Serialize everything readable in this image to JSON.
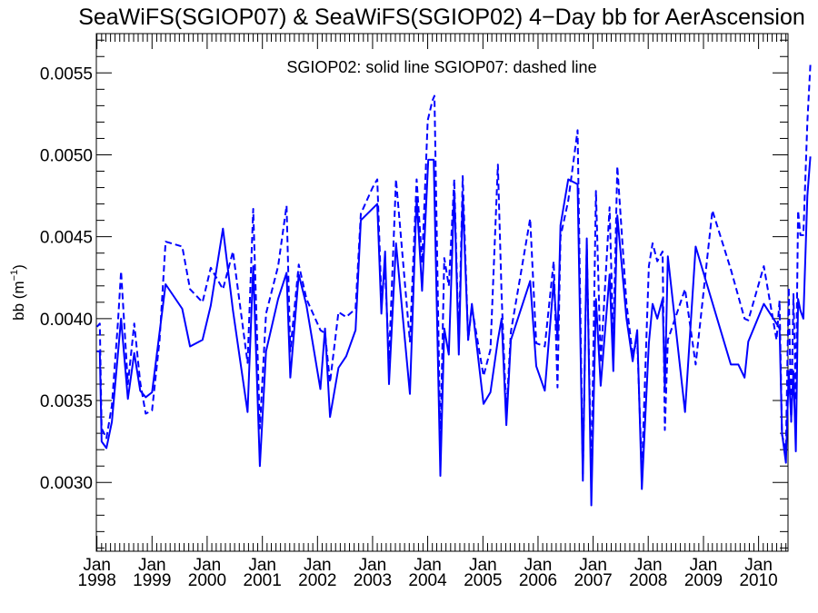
{
  "chart_data": {
    "type": "line",
    "title": "SeaWiFS(SGIOP07) & SeaWiFS(SGIOP02) 4−Day bb for AerAscension",
    "annotation": "SGIOP02: solid line   SGIOP07: dashed line",
    "ylabel": "bb (m",
    "ylabel_sup": "−1",
    "ylabel_close": ")",
    "xlim": [
      "1997-12-28",
      "2010-07-15"
    ],
    "ylim": [
      0.00258,
      0.00574
    ],
    "grid": false,
    "color": "#0000ff",
    "y_ticks": [
      {
        "value": 0.003,
        "label": "0.0030"
      },
      {
        "value": 0.0035,
        "label": "0.0035"
      },
      {
        "value": 0.004,
        "label": "0.0040"
      },
      {
        "value": 0.0045,
        "label": "0.0045"
      },
      {
        "value": 0.005,
        "label": "0.0050"
      },
      {
        "value": 0.0055,
        "label": "0.0055"
      }
    ],
    "x_ticks": [
      {
        "date": "1998-01-01",
        "month": "Jan",
        "year": "1998"
      },
      {
        "date": "1999-01-01",
        "month": "Jan",
        "year": "1999"
      },
      {
        "date": "2000-01-01",
        "month": "Jan",
        "year": "2000"
      },
      {
        "date": "2001-01-01",
        "month": "Jan",
        "year": "2001"
      },
      {
        "date": "2002-01-01",
        "month": "Jan",
        "year": "2002"
      },
      {
        "date": "2003-01-01",
        "month": "Jan",
        "year": "2003"
      },
      {
        "date": "2004-01-01",
        "month": "Jan",
        "year": "2004"
      },
      {
        "date": "2005-01-01",
        "month": "Jan",
        "year": "2005"
      },
      {
        "date": "2006-01-01",
        "month": "Jan",
        "year": "2006"
      },
      {
        "date": "2007-01-01",
        "month": "Jan",
        "year": "2007"
      },
      {
        "date": "2008-01-01",
        "month": "Jan",
        "year": "2008"
      },
      {
        "date": "2009-01-01",
        "month": "Jan",
        "year": "2009"
      },
      {
        "date": "2010-01-01",
        "month": "Jan",
        "year": "2010"
      }
    ],
    "series": [
      {
        "style": "solid",
        "points": [
          [
            "1998-01-01",
            0.0038
          ],
          [
            "1998-01-20",
            0.0038
          ],
          [
            "1998-02-01",
            0.00325
          ],
          [
            "1998-03-05",
            0.00321
          ],
          [
            "1998-04-10",
            0.00337
          ],
          [
            "1998-06-10",
            0.004
          ],
          [
            "1998-07-25",
            0.00351
          ],
          [
            "1998-09-05",
            0.00379
          ],
          [
            "1998-10-15",
            0.00356
          ],
          [
            "1998-11-20",
            0.00352
          ],
          [
            "1999-01-01",
            0.00355
          ],
          [
            "1999-04-01",
            0.00421
          ],
          [
            "1999-07-20",
            0.00406
          ],
          [
            "1999-09-10",
            0.00383
          ],
          [
            "1999-12-01",
            0.00387
          ],
          [
            "2000-01-25",
            0.00408
          ],
          [
            "2000-04-15",
            0.00455
          ],
          [
            "2000-06-20",
            0.00405
          ],
          [
            "2000-09-25",
            0.00343
          ],
          [
            "2000-11-01",
            0.00432
          ],
          [
            "2000-12-15",
            0.0031
          ],
          [
            "2001-01-25",
            0.0038
          ],
          [
            "2001-04-15",
            0.00412
          ],
          [
            "2001-06-10",
            0.00428
          ],
          [
            "2001-07-05",
            0.00364
          ],
          [
            "2001-08-30",
            0.00427
          ],
          [
            "2001-10-20",
            0.00408
          ],
          [
            "2002-01-20",
            0.00357
          ],
          [
            "2002-02-20",
            0.00394
          ],
          [
            "2002-03-25",
            0.0034
          ],
          [
            "2002-05-20",
            0.0037
          ],
          [
            "2002-07-10",
            0.00377
          ],
          [
            "2002-09-10",
            0.00393
          ],
          [
            "2002-10-15",
            0.0046
          ],
          [
            "2003-02-01",
            0.0047
          ],
          [
            "2003-02-28",
            0.00403
          ],
          [
            "2003-03-25",
            0.00441
          ],
          [
            "2003-04-20",
            0.0036
          ],
          [
            "2003-06-05",
            0.00446
          ],
          [
            "2003-09-05",
            0.00354
          ],
          [
            "2003-10-20",
            0.00474
          ],
          [
            "2003-11-25",
            0.00417
          ],
          [
            "2004-01-05",
            0.00497
          ],
          [
            "2004-02-10",
            0.00497
          ],
          [
            "2004-03-25",
            0.00304
          ],
          [
            "2004-04-20",
            0.00394
          ],
          [
            "2004-05-20",
            0.00378
          ],
          [
            "2004-06-25",
            0.00478
          ],
          [
            "2004-07-25",
            0.00378
          ],
          [
            "2004-08-20",
            0.00474
          ],
          [
            "2004-09-25",
            0.00387
          ],
          [
            "2004-10-20",
            0.00409
          ],
          [
            "2005-01-05",
            0.00348
          ],
          [
            "2005-02-20",
            0.00355
          ],
          [
            "2005-04-10",
            0.00387
          ],
          [
            "2005-05-05",
            0.004
          ],
          [
            "2005-06-05",
            0.00335
          ],
          [
            "2005-07-05",
            0.00387
          ],
          [
            "2005-11-10",
            0.00423
          ],
          [
            "2005-12-20",
            0.00371
          ],
          [
            "2006-02-15",
            0.00356
          ],
          [
            "2006-04-15",
            0.00423
          ],
          [
            "2006-05-10",
            0.00387
          ],
          [
            "2006-05-30",
            0.00457
          ],
          [
            "2006-07-20",
            0.00485
          ],
          [
            "2006-09-20",
            0.00482
          ],
          [
            "2006-10-25",
            0.00301
          ],
          [
            "2006-11-20",
            0.00449
          ],
          [
            "2006-12-20",
            0.00286
          ],
          [
            "2007-01-20",
            0.00412
          ],
          [
            "2007-02-20",
            0.00359
          ],
          [
            "2007-04-20",
            0.00427
          ],
          [
            "2007-05-15",
            0.00368
          ],
          [
            "2007-06-10",
            0.00463
          ],
          [
            "2007-08-10",
            0.004
          ],
          [
            "2007-09-20",
            0.00374
          ],
          [
            "2007-10-20",
            0.00393
          ],
          [
            "2007-11-20",
            0.00296
          ],
          [
            "2008-01-05",
            0.00385
          ],
          [
            "2008-01-30",
            0.00409
          ],
          [
            "2008-03-01",
            0.004
          ],
          [
            "2008-04-05",
            0.00412
          ],
          [
            "2008-04-20",
            0.00357
          ],
          [
            "2008-05-10",
            0.00438
          ],
          [
            "2008-09-01",
            0.00343
          ],
          [
            "2008-11-10",
            0.00444
          ],
          [
            "2009-07-01",
            0.00372
          ],
          [
            "2009-08-20",
            0.00372
          ],
          [
            "2009-09-30",
            0.00364
          ],
          [
            "2009-10-25",
            0.00386
          ],
          [
            "2010-02-05",
            0.00409
          ],
          [
            "2010-04-30",
            0.00397
          ],
          [
            "2010-05-20",
            0.00394
          ],
          [
            "2010-06-05",
            0.0033
          ],
          [
            "2010-07-01",
            0.00312
          ],
          [
            "2010-07-20",
            0.00368
          ],
          [
            "2010-08-05",
            0.00339
          ],
          [
            "2010-08-20",
            0.00368
          ],
          [
            "2010-09-05",
            0.00319
          ],
          [
            "2010-09-20",
            0.00412
          ],
          [
            "2010-10-05",
            0.00405
          ],
          [
            "2010-10-25",
            0.004
          ],
          [
            "2010-11-20",
            0.00475
          ],
          [
            "2010-12-10",
            0.00499
          ]
        ]
      },
      {
        "style": "dashed",
        "points": [
          [
            "1998-01-01",
            0.00395
          ],
          [
            "1998-01-20",
            0.00397
          ],
          [
            "1998-02-01",
            0.00333
          ],
          [
            "1998-03-05",
            0.00327
          ],
          [
            "1998-04-10",
            0.00347
          ],
          [
            "1998-05-20",
            0.00398
          ],
          [
            "1998-06-10",
            0.00429
          ],
          [
            "1998-07-25",
            0.0036
          ],
          [
            "1998-09-05",
            0.00397
          ],
          [
            "1998-10-15",
            0.00361
          ],
          [
            "1998-11-20",
            0.00342
          ],
          [
            "1999-01-01",
            0.00344
          ],
          [
            "1999-02-20",
            0.00387
          ],
          [
            "1999-04-01",
            0.00447
          ],
          [
            "1999-07-20",
            0.00444
          ],
          [
            "1999-09-10",
            0.00418
          ],
          [
            "1999-12-01",
            0.0041
          ],
          [
            "2000-01-25",
            0.00431
          ],
          [
            "2000-04-15",
            0.00418
          ],
          [
            "2000-06-20",
            0.00441
          ],
          [
            "2000-09-25",
            0.00373
          ],
          [
            "2000-11-01",
            0.00467
          ],
          [
            "2000-12-15",
            0.00333
          ],
          [
            "2001-01-25",
            0.00403
          ],
          [
            "2001-04-15",
            0.00432
          ],
          [
            "2001-06-10",
            0.00469
          ],
          [
            "2001-07-05",
            0.0038
          ],
          [
            "2001-08-30",
            0.00433
          ],
          [
            "2001-10-20",
            0.00412
          ],
          [
            "2002-01-20",
            0.00393
          ],
          [
            "2002-02-20",
            0.00391
          ],
          [
            "2002-03-25",
            0.00361
          ],
          [
            "2002-05-20",
            0.00404
          ],
          [
            "2002-07-10",
            0.00401
          ],
          [
            "2002-09-10",
            0.00406
          ],
          [
            "2002-10-15",
            0.00464
          ],
          [
            "2003-01-01",
            0.0048
          ],
          [
            "2003-02-01",
            0.00485
          ],
          [
            "2003-02-28",
            0.00413
          ],
          [
            "2003-03-25",
            0.00429
          ],
          [
            "2003-04-20",
            0.00375
          ],
          [
            "2003-06-05",
            0.00485
          ],
          [
            "2003-09-05",
            0.00386
          ],
          [
            "2003-10-20",
            0.00485
          ],
          [
            "2003-11-25",
            0.00434
          ],
          [
            "2004-01-01",
            0.00521
          ],
          [
            "2004-02-01",
            0.00533
          ],
          [
            "2004-02-15",
            0.00536
          ],
          [
            "2004-03-25",
            0.00323
          ],
          [
            "2004-04-20",
            0.00437
          ],
          [
            "2004-05-20",
            0.0042
          ],
          [
            "2004-06-25",
            0.00485
          ],
          [
            "2004-07-25",
            0.00384
          ],
          [
            "2004-08-20",
            0.00487
          ],
          [
            "2004-09-25",
            0.00387
          ],
          [
            "2004-10-20",
            0.00407
          ],
          [
            "2005-01-05",
            0.00365
          ],
          [
            "2005-02-20",
            0.00381
          ],
          [
            "2005-04-10",
            0.00494
          ],
          [
            "2005-05-05",
            0.00414
          ],
          [
            "2005-06-05",
            0.00342
          ],
          [
            "2005-07-05",
            0.00392
          ],
          [
            "2005-11-10",
            0.00461
          ],
          [
            "2005-12-20",
            0.00385
          ],
          [
            "2006-02-15",
            0.00383
          ],
          [
            "2006-04-15",
            0.00435
          ],
          [
            "2006-05-10",
            0.00358
          ],
          [
            "2006-05-30",
            0.0045
          ],
          [
            "2006-07-20",
            0.00472
          ],
          [
            "2006-09-20",
            0.00515
          ],
          [
            "2006-10-25",
            0.00305
          ],
          [
            "2006-11-20",
            0.00445
          ],
          [
            "2006-12-20",
            0.00303
          ],
          [
            "2007-01-20",
            0.00478
          ],
          [
            "2007-02-20",
            0.00373
          ],
          [
            "2007-04-20",
            0.00468
          ],
          [
            "2007-05-15",
            0.00385
          ],
          [
            "2007-06-10",
            0.00493
          ],
          [
            "2007-08-10",
            0.00409
          ],
          [
            "2007-09-20",
            0.00378
          ],
          [
            "2007-10-20",
            0.00387
          ],
          [
            "2007-11-20",
            0.00306
          ],
          [
            "2008-01-05",
            0.00432
          ],
          [
            "2008-01-30",
            0.00446
          ],
          [
            "2008-03-01",
            0.00435
          ],
          [
            "2008-04-05",
            0.00441
          ],
          [
            "2008-04-20",
            0.00332
          ],
          [
            "2008-05-10",
            0.00387
          ],
          [
            "2008-09-01",
            0.00418
          ],
          [
            "2008-11-10",
            0.00372
          ],
          [
            "2009-03-01",
            0.00466
          ],
          [
            "2009-07-01",
            0.0043
          ],
          [
            "2009-09-30",
            0.004
          ],
          [
            "2009-10-25",
            0.00399
          ],
          [
            "2010-02-05",
            0.00432
          ],
          [
            "2010-04-30",
            0.00387
          ],
          [
            "2010-05-20",
            0.00411
          ],
          [
            "2010-06-05",
            0.00329
          ],
          [
            "2010-07-01",
            0.0032
          ],
          [
            "2010-07-20",
            0.00419
          ],
          [
            "2010-08-05",
            0.00337
          ],
          [
            "2010-08-20",
            0.00415
          ],
          [
            "2010-09-05",
            0.0035
          ],
          [
            "2010-09-20",
            0.00466
          ],
          [
            "2010-10-05",
            0.00451
          ],
          [
            "2010-10-25",
            0.00451
          ],
          [
            "2010-11-20",
            0.0052
          ],
          [
            "2010-12-10",
            0.00555
          ]
        ]
      }
    ]
  }
}
